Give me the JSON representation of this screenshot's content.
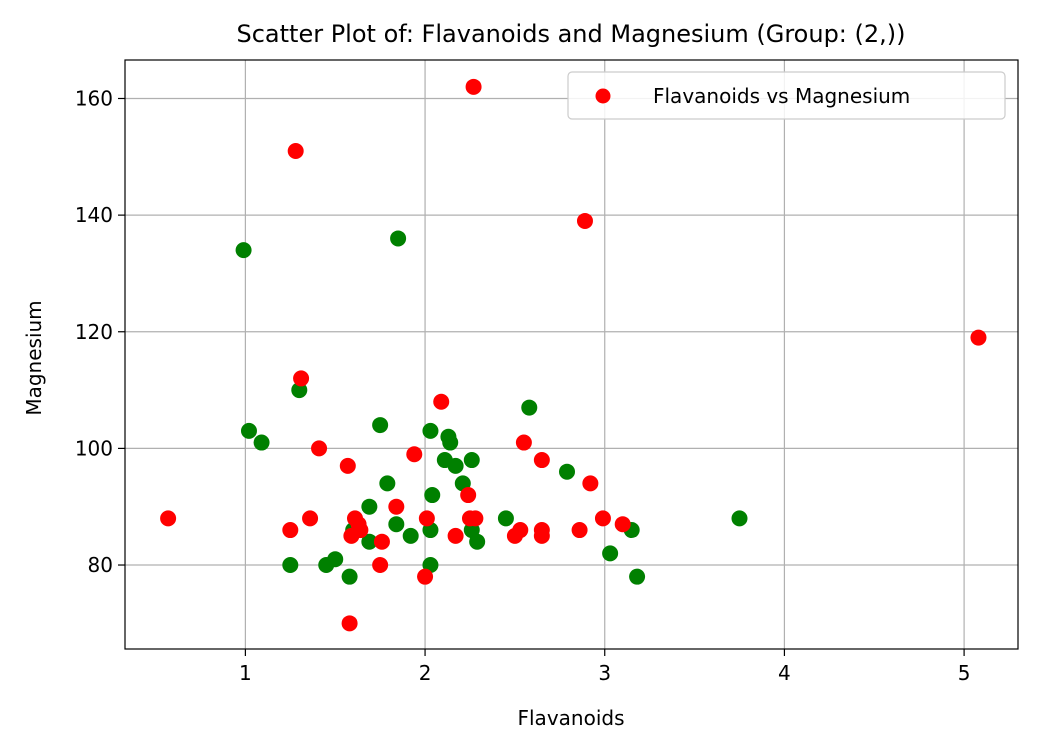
{
  "chart_data": {
    "type": "scatter",
    "title": "Scatter Plot of: Flavanoids and Magnesium (Group: (2,))",
    "xlabel": "Flavanoids",
    "ylabel": "Magnesium",
    "xlim": [
      0.33,
      5.3
    ],
    "ylim": [
      65.6,
      166.6
    ],
    "xticks": [
      1,
      2,
      3,
      4,
      5
    ],
    "yticks": [
      80,
      100,
      120,
      140,
      160
    ],
    "grid": true,
    "legend_position": "top-right",
    "legend_entries": [
      "Flavanoids vs Magnesium"
    ],
    "series": [
      {
        "name": "Flavanoids vs Magnesium",
        "color": "#ff0000",
        "points": [
          [
            0.57,
            88
          ],
          [
            1.25,
            86
          ],
          [
            1.28,
            151
          ],
          [
            1.31,
            112
          ],
          [
            1.36,
            88
          ],
          [
            1.41,
            100
          ],
          [
            1.57,
            97
          ],
          [
            1.58,
            70
          ],
          [
            1.59,
            85
          ],
          [
            1.61,
            88
          ],
          [
            1.63,
            87
          ],
          [
            1.64,
            86
          ],
          [
            1.75,
            80
          ],
          [
            1.76,
            84
          ],
          [
            1.84,
            90
          ],
          [
            1.94,
            99
          ],
          [
            2.0,
            78
          ],
          [
            2.01,
            88
          ],
          [
            2.09,
            108
          ],
          [
            2.17,
            85
          ],
          [
            2.24,
            92
          ],
          [
            2.25,
            88
          ],
          [
            2.27,
            162
          ],
          [
            2.28,
            88
          ],
          [
            2.5,
            85
          ],
          [
            2.53,
            86
          ],
          [
            2.55,
            101
          ],
          [
            2.65,
            98
          ],
          [
            2.65,
            86
          ],
          [
            2.65,
            85
          ],
          [
            2.86,
            86
          ],
          [
            2.89,
            139
          ],
          [
            2.92,
            94
          ],
          [
            2.99,
            88
          ],
          [
            3.1,
            87
          ],
          [
            5.08,
            119
          ]
        ]
      },
      {
        "color": "#008000",
        "points": [
          [
            0.99,
            134
          ],
          [
            1.02,
            103
          ],
          [
            1.09,
            101
          ],
          [
            1.25,
            80
          ],
          [
            1.3,
            110
          ],
          [
            1.45,
            80
          ],
          [
            1.5,
            81
          ],
          [
            1.58,
            78
          ],
          [
            1.6,
            86
          ],
          [
            1.69,
            84
          ],
          [
            1.69,
            90
          ],
          [
            1.75,
            104
          ],
          [
            1.79,
            94
          ],
          [
            1.84,
            87
          ],
          [
            1.85,
            136
          ],
          [
            1.92,
            85
          ],
          [
            2.03,
            103
          ],
          [
            2.03,
            80
          ],
          [
            2.03,
            86
          ],
          [
            2.04,
            92
          ],
          [
            2.11,
            98
          ],
          [
            2.13,
            102
          ],
          [
            2.14,
            101
          ],
          [
            2.17,
            97
          ],
          [
            2.21,
            94
          ],
          [
            2.26,
            98
          ],
          [
            2.26,
            86
          ],
          [
            2.29,
            84
          ],
          [
            2.45,
            88
          ],
          [
            2.58,
            107
          ],
          [
            2.79,
            96
          ],
          [
            3.03,
            82
          ],
          [
            3.15,
            86
          ],
          [
            3.18,
            78
          ],
          [
            3.75,
            88
          ]
        ]
      }
    ]
  }
}
